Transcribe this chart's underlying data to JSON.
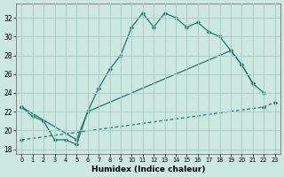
{
  "xlabel": "Humidex (Indice chaleur)",
  "bg_color": "#cce8e0",
  "grid_color": "#aacfc8",
  "line_color": "#1a7a6e",
  "xlim": [
    -0.5,
    23.5
  ],
  "ylim": [
    17.5,
    33.5
  ],
  "yticks": [
    18,
    20,
    22,
    24,
    26,
    28,
    30,
    32
  ],
  "xticks": [
    0,
    1,
    2,
    3,
    4,
    5,
    6,
    7,
    8,
    9,
    10,
    11,
    12,
    13,
    14,
    15,
    16,
    17,
    18,
    19,
    20,
    21,
    22,
    23
  ],
  "line1_x": [
    0,
    1,
    2,
    3,
    4,
    5,
    6,
    7,
    8,
    9,
    10,
    11,
    12,
    13,
    14,
    15,
    16,
    17,
    18,
    19,
    20,
    21
  ],
  "line1_y": [
    22.5,
    21.5,
    21.0,
    19.0,
    19.0,
    18.5,
    22.0,
    24.5,
    26.5,
    28.0,
    31.0,
    32.5,
    31.0,
    32.5,
    32.0,
    31.0,
    31.5,
    30.5,
    30.0,
    28.5,
    27.0,
    25.0
  ],
  "line2_x": [
    0,
    5,
    6,
    19,
    20,
    21,
    22
  ],
  "line2_y": [
    22.5,
    19.0,
    22.0,
    28.5,
    27.0,
    25.0,
    24.0
  ],
  "line3_x": [
    0,
    22,
    23
  ],
  "line3_y": [
    19.0,
    22.5,
    23.0
  ]
}
